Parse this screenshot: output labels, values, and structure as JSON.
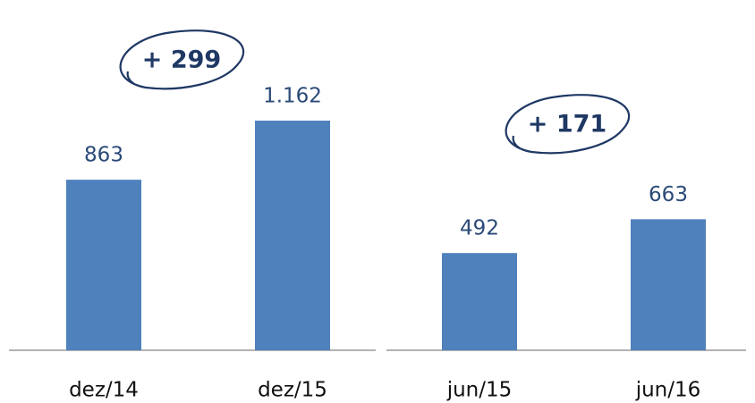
{
  "chart_data": [
    {
      "type": "bar",
      "annotation": "+ 299",
      "categories": [
        "dez/14",
        "dez/15"
      ],
      "values": [
        863,
        1162
      ],
      "value_labels": [
        "863",
        "1.162"
      ],
      "color": "#4f81bd"
    },
    {
      "type": "bar",
      "annotation": "+ 171",
      "categories": [
        "jun/15",
        "jun/16"
      ],
      "values": [
        492,
        663
      ],
      "color": "#4f81bd"
    }
  ]
}
